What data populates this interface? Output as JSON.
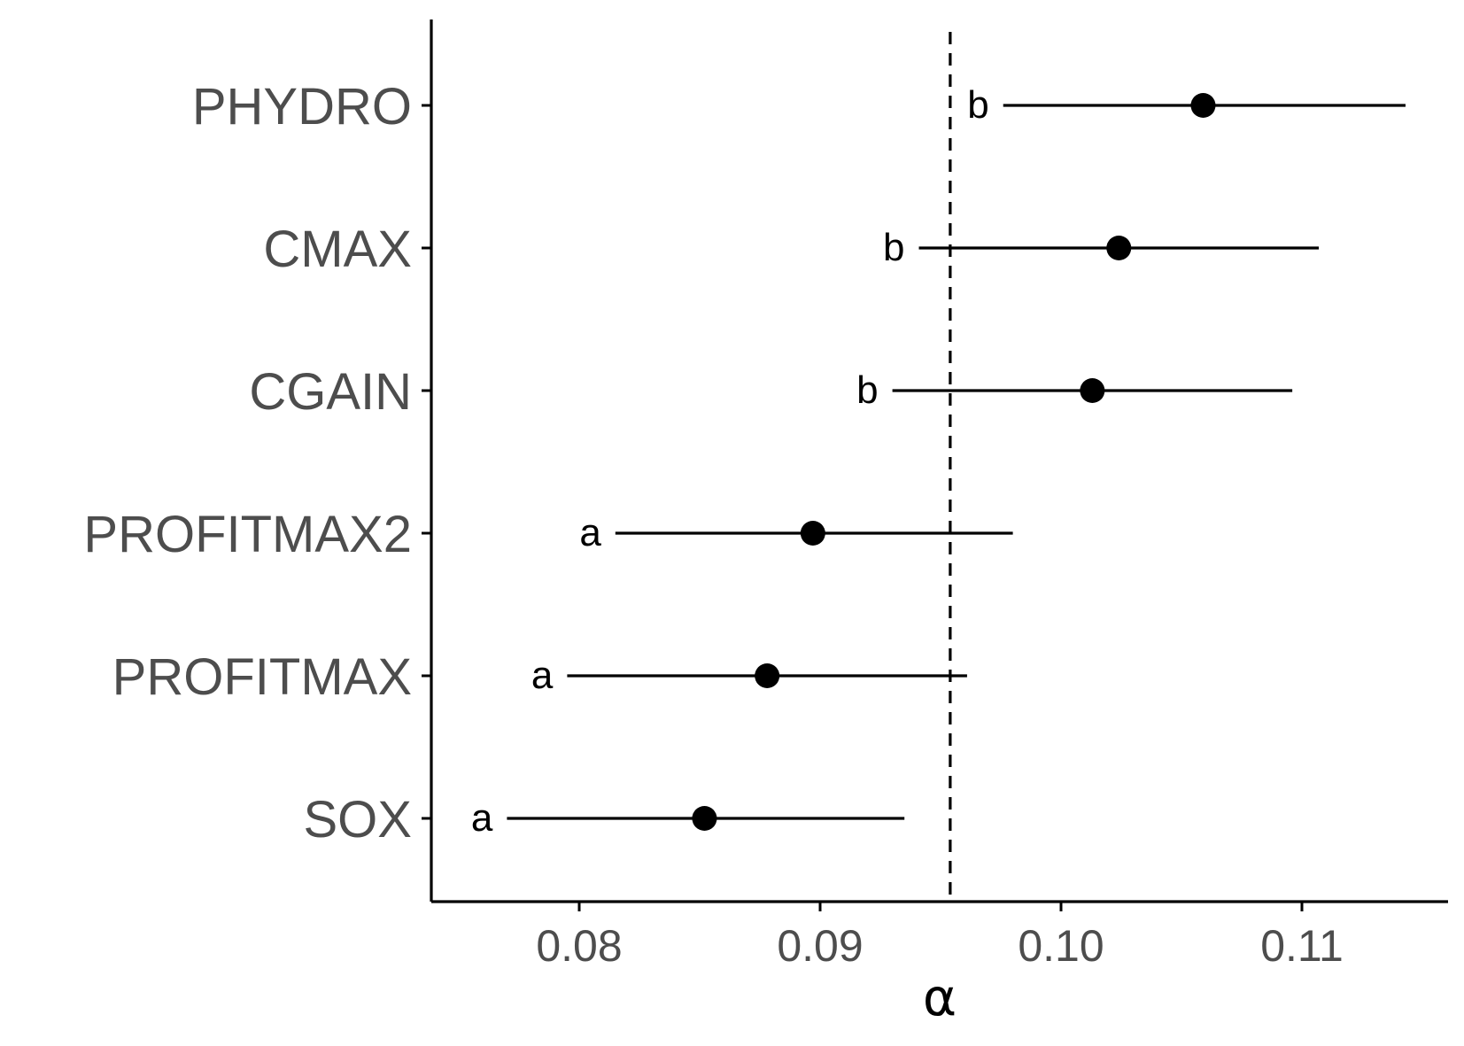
{
  "chart_data": {
    "type": "scatter",
    "subtype": "point-range",
    "xlabel": "α",
    "ylabel": "",
    "title": "",
    "xlim": [
      0.074,
      0.116
    ],
    "xticks": [
      0.08,
      0.09,
      0.1,
      0.11
    ],
    "xtick_labels": [
      "0.08",
      "0.09",
      "0.10",
      "0.11"
    ],
    "reference_line": {
      "x": 0.0954,
      "style": "dashed"
    },
    "grid": false,
    "legend": "none",
    "colors": {
      "points": "#000000",
      "axis": "#000000",
      "tick_labels": "#4d4d4d"
    },
    "categories": [
      "PHYDRO",
      "CMAX",
      "CGAIN",
      "PROFITMAX2",
      "PROFITMAX",
      "SOX"
    ],
    "points": [
      {
        "name": "PHYDRO",
        "estimate": 0.1059,
        "lower": 0.0976,
        "upper": 0.1143,
        "group": "b"
      },
      {
        "name": "CMAX",
        "estimate": 0.1024,
        "lower": 0.0941,
        "upper": 0.1107,
        "group": "b"
      },
      {
        "name": "CGAIN",
        "estimate": 0.1013,
        "lower": 0.093,
        "upper": 0.1096,
        "group": "b"
      },
      {
        "name": "PROFITMAX2",
        "estimate": 0.0897,
        "lower": 0.0815,
        "upper": 0.098,
        "group": "a"
      },
      {
        "name": "PROFITMAX",
        "estimate": 0.0878,
        "lower": 0.0795,
        "upper": 0.0961,
        "group": "a"
      },
      {
        "name": "SOX",
        "estimate": 0.0852,
        "lower": 0.077,
        "upper": 0.0935,
        "group": "a"
      }
    ]
  }
}
